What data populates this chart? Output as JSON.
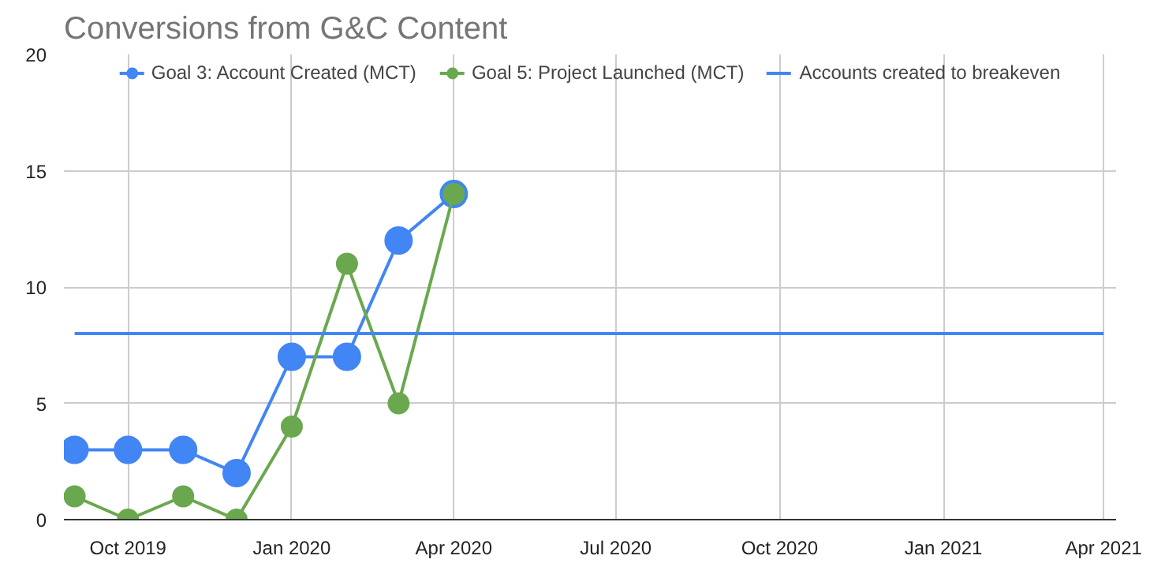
{
  "chart_data": {
    "type": "line",
    "title": "Conversions from G&C Content",
    "x": [
      "2019-09-01",
      "2019-10-01",
      "2019-11-01",
      "2019-12-01",
      "2020-01-01",
      "2020-02-01",
      "2020-03-01",
      "2020-04-01"
    ],
    "series": [
      {
        "name": "Goal 3: Account Created (MCT)",
        "color": "#4285f4",
        "values": [
          3,
          3,
          3,
          2,
          7,
          7,
          12,
          14
        ],
        "marker": "circle"
      },
      {
        "name": "Goal 5: Project Launched (MCT)",
        "color": "#6aa84f",
        "values": [
          1,
          0,
          1,
          0,
          4,
          11,
          5,
          14
        ],
        "marker": "circle"
      },
      {
        "name": "Accounts created to breakeven",
        "color": "#4285f4",
        "x": [
          "2019-09-01",
          "2021-04-01"
        ],
        "values": [
          8,
          8
        ],
        "marker": "none"
      }
    ],
    "xlim": [
      "2019-08-26",
      "2021-04-08"
    ],
    "xticks": [
      {
        "value": "2019-10-01",
        "label": "Oct 2019"
      },
      {
        "value": "2020-01-01",
        "label": "Jan 2020"
      },
      {
        "value": "2020-04-01",
        "label": "Apr 2020"
      },
      {
        "value": "2020-07-01",
        "label": "Jul 2020"
      },
      {
        "value": "2020-10-01",
        "label": "Oct 2020"
      },
      {
        "value": "2021-01-01",
        "label": "Jan 2021"
      },
      {
        "value": "2021-04-01",
        "label": "Apr 2021"
      }
    ],
    "ylim": [
      0,
      20
    ],
    "yticks": [
      0,
      5,
      10,
      15,
      20
    ],
    "grid": true,
    "legend": "top",
    "line_style": "solid"
  }
}
